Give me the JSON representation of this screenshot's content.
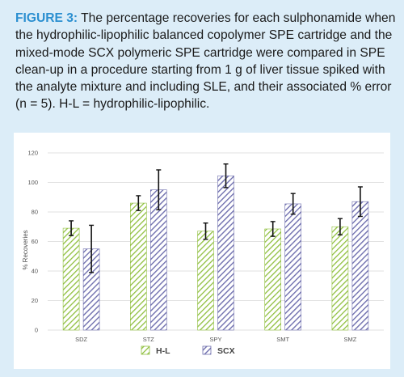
{
  "caption": {
    "label": "FIGURE 3:",
    "text": " The percentage recoveries for each sulphonamide when the hydrophilic-lipophilic balanced copolymer SPE cartridge and the mixed-mode SCX polymeric SPE cartridge were compared in SPE clean-up in a procedure starting from 1 g of liver tissue spiked with the analyte mixture and including SLE, and their associated % error (n = 5). H-L = hydrophilic-lipophilic."
  },
  "colors": {
    "background": "#dcedf8",
    "hl_fill": "#8fbf3e",
    "scx_fill": "#6f6fae",
    "caption_label": "#2b8fd0"
  },
  "chart_data": {
    "type": "bar",
    "categories": [
      "SDZ",
      "STZ",
      "SPY",
      "SMT",
      "SMZ"
    ],
    "series": [
      {
        "name": "H-L",
        "values": [
          69,
          86,
          67,
          68.5,
          70
        ],
        "errors": [
          5,
          5,
          5.5,
          5,
          5.5
        ]
      },
      {
        "name": "SCX",
        "values": [
          55,
          95,
          104.5,
          85.5,
          87
        ],
        "errors": [
          16,
          13.5,
          8,
          7,
          10
        ]
      }
    ],
    "ylabel": "% Recoveries",
    "yticks": [
      0,
      20,
      40,
      60,
      80,
      100,
      120
    ],
    "ylim": [
      0,
      120
    ],
    "grid": true,
    "legend_position": "bottom"
  }
}
